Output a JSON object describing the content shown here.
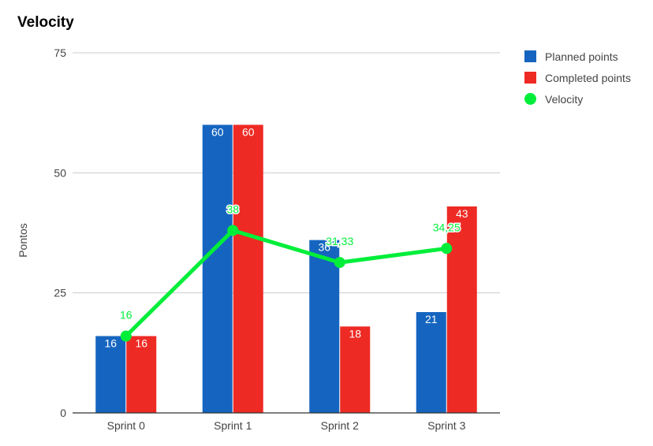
{
  "colors": {
    "planned": "#1565c0",
    "completed": "#ee2a24",
    "velocity": "#00ee3a",
    "grid": "#cccccc",
    "axis": "#333333",
    "text": "#444444"
  },
  "chart_data": {
    "type": "bar",
    "title": "Velocity",
    "xlabel": "",
    "ylabel": "Pontos",
    "ylim": [
      0,
      75
    ],
    "yticks": [
      "0",
      "25",
      "50",
      "75"
    ],
    "categories": [
      "Sprint 0",
      "Sprint 1",
      "Sprint 2",
      "Sprint 3"
    ],
    "series": [
      {
        "name": "Planned points",
        "kind": "bar",
        "values": [
          16,
          60,
          36,
          21
        ],
        "labels": [
          "16",
          "60",
          "36",
          "21"
        ]
      },
      {
        "name": "Completed points",
        "kind": "bar",
        "values": [
          16,
          60,
          18,
          43
        ],
        "labels": [
          "16",
          "60",
          "18",
          "43"
        ]
      },
      {
        "name": "Velocity",
        "kind": "line",
        "values": [
          16,
          38,
          31.33,
          34.25
        ],
        "labels": [
          "16",
          "38",
          "31,33",
          "34,25"
        ]
      }
    ],
    "grid": true,
    "legend": "right"
  }
}
